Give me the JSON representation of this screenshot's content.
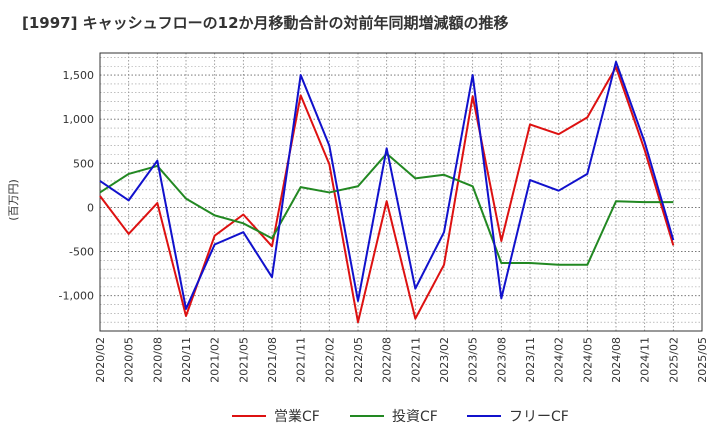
{
  "chart_data": {
    "type": "line",
    "title": "[1997]  キャッシュフローの12か月移動合計の対前年同期増減額の推移",
    "ylabel": "(百万円)",
    "xlabel": "",
    "ylim": [
      -1400,
      1750
    ],
    "yticks": [
      -1000,
      -500,
      0,
      500,
      1000,
      1500
    ],
    "ytick_labels": [
      "-1,000",
      "-500",
      "0",
      "500",
      "1,000",
      "1,500"
    ],
    "xtick_labels": [
      "2020/02",
      "2020/05",
      "2020/08",
      "2020/11",
      "2021/02",
      "2021/05",
      "2021/08",
      "2021/11",
      "2022/02",
      "2022/05",
      "2022/08",
      "2022/11",
      "2023/02",
      "2023/05",
      "2023/08",
      "2023/11",
      "2024/02",
      "2024/05",
      "2024/08",
      "2024/11",
      "2025/02",
      "2025/05"
    ],
    "x": [
      "2020/02",
      "2020/05",
      "2020/08",
      "2020/11",
      "2021/02",
      "2021/05",
      "2021/08",
      "2021/11",
      "2022/02",
      "2022/05",
      "2022/08",
      "2022/11",
      "2023/02",
      "2023/05",
      "2023/08",
      "2023/11",
      "2024/02",
      "2024/05",
      "2024/08",
      "2024/11",
      "2025/02"
    ],
    "grid": true,
    "legend_position": "bottom",
    "series": [
      {
        "name": "営業CF",
        "color": "#dd1111",
        "values": [
          130,
          -300,
          50,
          -1230,
          -320,
          -80,
          -440,
          1270,
          490,
          -1300,
          70,
          -1260,
          -650,
          1260,
          -380,
          940,
          830,
          1020,
          1590,
          650,
          -430
        ]
      },
      {
        "name": "投資CF",
        "color": "#228822",
        "values": [
          170,
          380,
          470,
          100,
          -90,
          -180,
          -350,
          230,
          170,
          240,
          610,
          330,
          370,
          240,
          -630,
          -630,
          -650,
          -650,
          70,
          60,
          60
        ]
      },
      {
        "name": "フリーCF",
        "color": "#1111cc",
        "values": [
          300,
          80,
          530,
          -1150,
          -420,
          -280,
          -790,
          1500,
          700,
          -1060,
          670,
          -920,
          -280,
          1500,
          -1030,
          310,
          190,
          380,
          1650,
          740,
          -370
        ]
      }
    ]
  }
}
